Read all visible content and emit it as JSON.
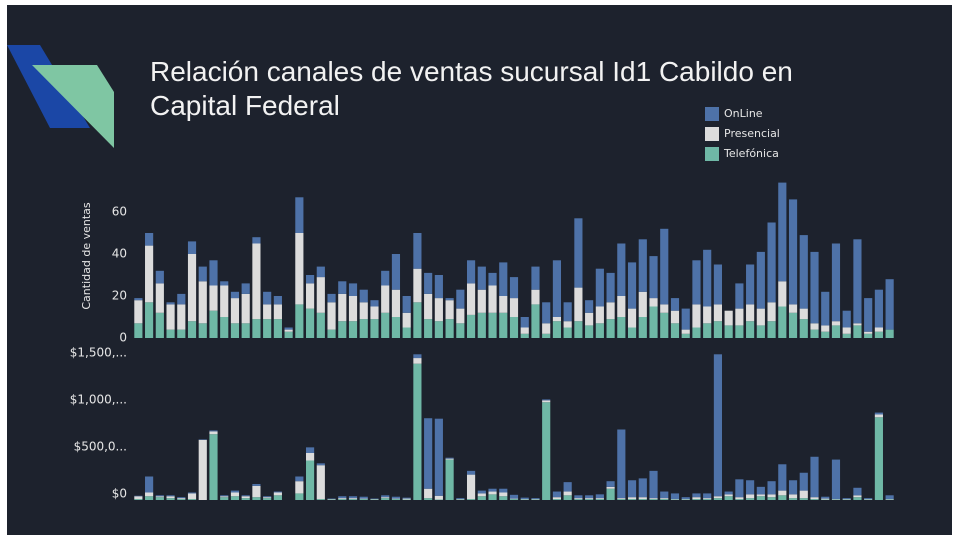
{
  "chart_data": [
    {
      "type": "bar",
      "stacked": true,
      "title": "Relación canales de ventas sucursal Id1 Cabildo en Capital Federal",
      "ylabel": "Cantidad de ventas",
      "ylim": [
        0,
        75
      ],
      "yticks": [
        0,
        20,
        40,
        60
      ],
      "series": [
        {
          "name": "Telefónica",
          "color": "#6fb8a6",
          "values": [
            7,
            17,
            12,
            4,
            4,
            8,
            7,
            13,
            10,
            7,
            7,
            9,
            9,
            9,
            3,
            16,
            14,
            12,
            4,
            8,
            8,
            9,
            9,
            12,
            10,
            5,
            17,
            9,
            8,
            9,
            7,
            11,
            12,
            12,
            12,
            10,
            2,
            16,
            2,
            8,
            5,
            8,
            6,
            7,
            9,
            10,
            5,
            10,
            15,
            12,
            7,
            2,
            5,
            7,
            8,
            6,
            6,
            8,
            6,
            8,
            15,
            12,
            9,
            4,
            3,
            6,
            2,
            6,
            2,
            3,
            4
          ]
        },
        {
          "name": "Presencial",
          "color": "#dcdcdc",
          "values": [
            11,
            27,
            14,
            12,
            12,
            32,
            20,
            12,
            15,
            12,
            14,
            36,
            7,
            7,
            1,
            34,
            12,
            17,
            13,
            13,
            12,
            8,
            6,
            13,
            13,
            7,
            16,
            12,
            11,
            9,
            7,
            15,
            11,
            13,
            8,
            9,
            3,
            7,
            5,
            2,
            3,
            16,
            6,
            8,
            8,
            10,
            9,
            12,
            4,
            4,
            6,
            2,
            11,
            8,
            8,
            7,
            8,
            8,
            8,
            9,
            12,
            4,
            5,
            3,
            3,
            2,
            3,
            1,
            1,
            2,
            0
          ]
        },
        {
          "name": "OnLine",
          "color": "#4e72a8",
          "values": [
            1,
            6,
            6,
            1,
            5,
            6,
            7,
            12,
            2,
            3,
            5,
            3,
            6,
            4,
            1,
            17,
            4,
            5,
            4,
            6,
            6,
            6,
            3,
            7,
            17,
            8,
            17,
            10,
            11,
            1,
            9,
            11,
            11,
            6,
            16,
            10,
            5,
            11,
            10,
            27,
            9,
            33,
            6,
            18,
            14,
            25,
            22,
            25,
            20,
            36,
            6,
            10,
            21,
            27,
            19,
            0,
            12,
            19,
            27,
            38,
            47,
            50,
            35,
            34,
            16,
            37,
            8,
            40,
            16,
            18,
            24
          ]
        }
      ]
    },
    {
      "type": "bar",
      "stacked": true,
      "ylim": [
        0,
        1600000
      ],
      "yticks": [
        {
          "value": 0,
          "label": "$0"
        },
        {
          "value": 500000,
          "label": "$500,0..."
        },
        {
          "value": 1000000,
          "label": "$1,000,..."
        },
        {
          "value": 1500000,
          "label": "$1,500,..."
        }
      ],
      "series": [
        {
          "color": "#6fb8a6",
          "values": [
            10000,
            40000,
            30000,
            20000,
            10000,
            10000,
            0,
            700000,
            30000,
            40000,
            20000,
            30000,
            20000,
            50000,
            0,
            70000,
            420000,
            10000,
            5000,
            10000,
            10000,
            10000,
            5000,
            20000,
            10000,
            5000,
            1450000,
            20000,
            5000,
            430000,
            5000,
            10000,
            40000,
            60000,
            40000,
            10000,
            5000,
            5000,
            1040000,
            10000,
            50000,
            10000,
            10000,
            10000,
            120000,
            10000,
            10000,
            10000,
            10000,
            10000,
            5000,
            5000,
            10000,
            10000,
            20000,
            40000,
            10000,
            20000,
            40000,
            30000,
            50000,
            20000,
            20000,
            10000,
            5000,
            5000,
            5000,
            30000,
            5000,
            880000,
            5000
          ]
        },
        {
          "color": "#dcdcdc",
          "values": [
            30000,
            40000,
            10000,
            20000,
            10000,
            60000,
            640000,
            30000,
            10000,
            40000,
            20000,
            120000,
            10000,
            30000,
            0,
            130000,
            80000,
            360000,
            5000,
            10000,
            10000,
            5000,
            5000,
            10000,
            5000,
            10000,
            60000,
            100000,
            40000,
            10000,
            5000,
            260000,
            30000,
            30000,
            40000,
            5000,
            5000,
            5000,
            20000,
            20000,
            40000,
            10000,
            10000,
            10000,
            20000,
            10000,
            20000,
            20000,
            10000,
            10000,
            5000,
            5000,
            20000,
            10000,
            20000,
            20000,
            20000,
            40000,
            20000,
            30000,
            50000,
            40000,
            80000,
            20000,
            10000,
            5000,
            5000,
            20000,
            5000,
            30000,
            5000
          ]
        },
        {
          "color": "#4e72a8",
          "values": [
            5000,
            170000,
            10000,
            10000,
            10000,
            10000,
            5000,
            10000,
            10000,
            20000,
            10000,
            20000,
            10000,
            10000,
            0,
            50000,
            60000,
            20000,
            5000,
            20000,
            20000,
            20000,
            5000,
            20000,
            20000,
            10000,
            40000,
            750000,
            820000,
            10000,
            10000,
            40000,
            30000,
            30000,
            40000,
            40000,
            15000,
            10000,
            10000,
            60000,
            100000,
            30000,
            30000,
            40000,
            60000,
            730000,
            180000,
            200000,
            290000,
            70000,
            60000,
            20000,
            40000,
            50000,
            1510000,
            30000,
            190000,
            150000,
            80000,
            140000,
            280000,
            150000,
            190000,
            430000,
            20000,
            420000,
            10000,
            80000,
            10000,
            20000,
            40000
          ]
        }
      ]
    }
  ]
}
